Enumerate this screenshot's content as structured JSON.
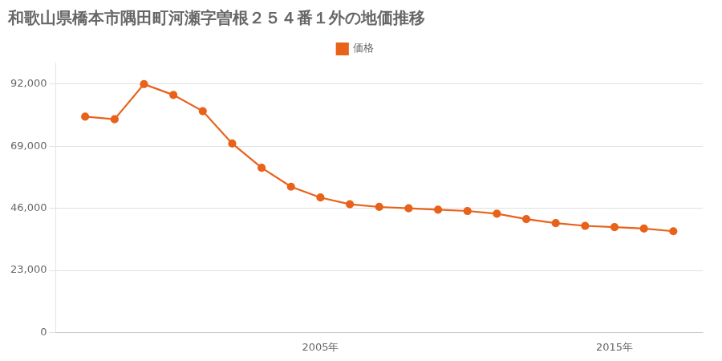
{
  "chart_data": {
    "type": "line",
    "title": "和歌山県橋本市隅田町河瀬字曽根２５４番１外の地価推移",
    "x": [
      1997,
      1998,
      1999,
      2000,
      2001,
      2002,
      2003,
      2004,
      2005,
      2006,
      2007,
      2008,
      2009,
      2010,
      2011,
      2012,
      2013,
      2014,
      2015,
      2016,
      2017
    ],
    "series": [
      {
        "name": "価格",
        "color": "#e8621a",
        "marker": "circle",
        "values": [
          80000,
          79000,
          92000,
          88000,
          82000,
          70000,
          61000,
          54000,
          50000,
          47500,
          46500,
          46000,
          45500,
          45000,
          44000,
          42000,
          40500,
          39500,
          39000,
          38500,
          37500
        ]
      }
    ],
    "xlim": [
      1996,
      2018
    ],
    "xticks": [
      {
        "value": 2005,
        "label": "2005年"
      },
      {
        "value": 2015,
        "label": "2015年"
      }
    ],
    "ylim": [
      0,
      100000
    ],
    "yticks": [
      0,
      {
        "value": 23000,
        "label": "23,000"
      },
      {
        "value": 46000,
        "label": "46,000"
      },
      {
        "value": 69000,
        "label": "69,000"
      },
      {
        "value": 92000,
        "label": "92,000"
      }
    ],
    "grid": "y",
    "legend": "top"
  }
}
